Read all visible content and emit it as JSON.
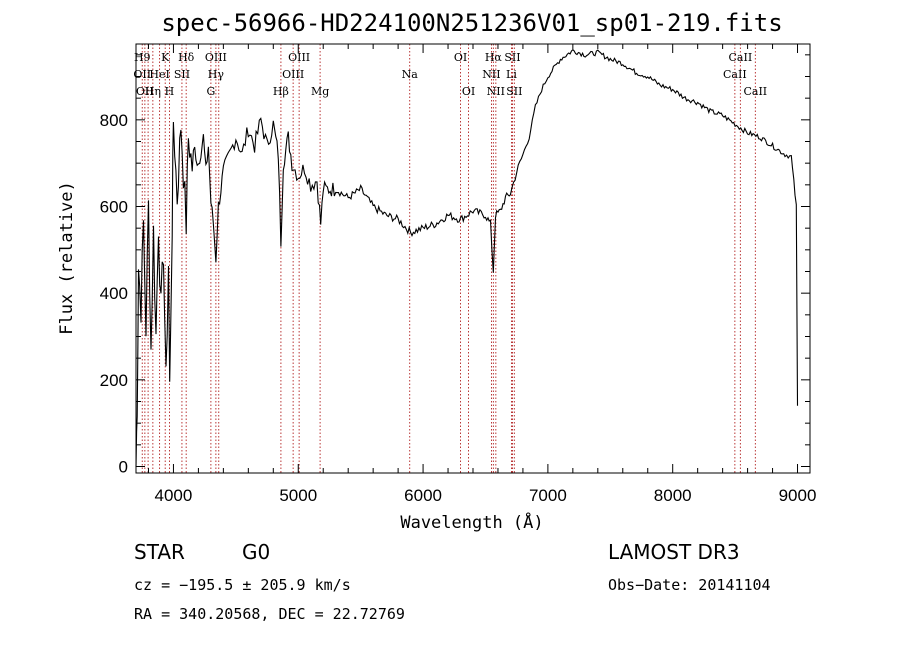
{
  "chart_data": {
    "type": "line",
    "title": "spec-56966-HD224100N251236V01_sp01-219.fits",
    "xlabel": "Wavelength (Å)",
    "ylabel": "Flux (relative)",
    "xlim": [
      3700,
      9100
    ],
    "ylim": [
      -15,
      975
    ],
    "xticks": [
      4000,
      5000,
      6000,
      7000,
      8000,
      9000
    ],
    "yticks": [
      0,
      200,
      400,
      600,
      800
    ],
    "grid": false,
    "series": [
      {
        "name": "spectrum",
        "points": [
          [
            3700,
            0
          ],
          [
            3710,
            150
          ],
          [
            3720,
            460
          ],
          [
            3740,
            370
          ],
          [
            3760,
            560
          ],
          [
            3780,
            320
          ],
          [
            3800,
            600
          ],
          [
            3820,
            270
          ],
          [
            3840,
            540
          ],
          [
            3860,
            300
          ],
          [
            3880,
            560
          ],
          [
            3900,
            360
          ],
          [
            3920,
            500
          ],
          [
            3940,
            190
          ],
          [
            3960,
            470
          ],
          [
            3970,
            180
          ],
          [
            3990,
            560
          ],
          [
            4000,
            800
          ],
          [
            4030,
            620
          ],
          [
            4060,
            790
          ],
          [
            4080,
            680
          ],
          [
            4102,
            560
          ],
          [
            4120,
            760
          ],
          [
            4150,
            690
          ],
          [
            4180,
            740
          ],
          [
            4200,
            700
          ],
          [
            4240,
            760
          ],
          [
            4260,
            680
          ],
          [
            4280,
            740
          ],
          [
            4300,
            610
          ],
          [
            4320,
            560
          ],
          [
            4340,
            480
          ],
          [
            4360,
            600
          ],
          [
            4400,
            680
          ],
          [
            4450,
            720
          ],
          [
            4500,
            760
          ],
          [
            4550,
            720
          ],
          [
            4600,
            780
          ],
          [
            4650,
            740
          ],
          [
            4700,
            800
          ],
          [
            4750,
            740
          ],
          [
            4800,
            790
          ],
          [
            4840,
            720
          ],
          [
            4861,
            520
          ],
          [
            4880,
            700
          ],
          [
            4920,
            760
          ],
          [
            4950,
            700
          ],
          [
            5000,
            670
          ],
          [
            5050,
            690
          ],
          [
            5100,
            650
          ],
          [
            5150,
            660
          ],
          [
            5180,
            560
          ],
          [
            5200,
            640
          ],
          [
            5300,
            640
          ],
          [
            5400,
            620
          ],
          [
            5500,
            640
          ],
          [
            5600,
            600
          ],
          [
            5700,
            580
          ],
          [
            5800,
            570
          ],
          [
            5900,
            540
          ],
          [
            6000,
            550
          ],
          [
            6100,
            560
          ],
          [
            6200,
            580
          ],
          [
            6300,
            570
          ],
          [
            6400,
            590
          ],
          [
            6500,
            580
          ],
          [
            6540,
            560
          ],
          [
            6563,
            450
          ],
          [
            6580,
            580
          ],
          [
            6620,
            590
          ],
          [
            6660,
            620
          ],
          [
            6700,
            630
          ],
          [
            6750,
            680
          ],
          [
            6800,
            720
          ],
          [
            6850,
            760
          ],
          [
            6900,
            830
          ],
          [
            6950,
            870
          ],
          [
            7000,
            900
          ],
          [
            7100,
            940
          ],
          [
            7200,
            960
          ],
          [
            7300,
            950
          ],
          [
            7400,
            955
          ],
          [
            7500,
            940
          ],
          [
            7600,
            930
          ],
          [
            7700,
            910
          ],
          [
            7800,
            900
          ],
          [
            7900,
            880
          ],
          [
            8000,
            870
          ],
          [
            8100,
            850
          ],
          [
            8200,
            840
          ],
          [
            8300,
            820
          ],
          [
            8400,
            810
          ],
          [
            8500,
            790
          ],
          [
            8600,
            770
          ],
          [
            8700,
            760
          ],
          [
            8800,
            740
          ],
          [
            8900,
            720
          ],
          [
            8950,
            715
          ],
          [
            8990,
            600
          ],
          [
            9000,
            140
          ]
        ]
      }
    ],
    "line_markers": [
      {
        "wavelength": 3750,
        "top_label": "H9",
        "mid_label": "OII",
        "low_label": ""
      },
      {
        "wavelength": 3771,
        "top_label": "",
        "mid_label": "",
        "low_label": "OII"
      },
      {
        "wavelength": 3797,
        "top_label": "",
        "mid_label": "",
        "low_label": ""
      },
      {
        "wavelength": 3835,
        "top_label": "",
        "mid_label": "",
        "low_label": "Hη"
      },
      {
        "wavelength": 3889,
        "top_label": "",
        "mid_label": "HeI",
        "low_label": ""
      },
      {
        "wavelength": 3934,
        "top_label": "K",
        "mid_label": "",
        "low_label": ""
      },
      {
        "wavelength": 3968,
        "top_label": "",
        "mid_label": "",
        "low_label": "H"
      },
      {
        "wavelength": 4068,
        "top_label": "",
        "mid_label": "SII",
        "low_label": ""
      },
      {
        "wavelength": 4102,
        "top_label": "Hδ",
        "mid_label": "",
        "low_label": ""
      },
      {
        "wavelength": 4300,
        "top_label": "",
        "mid_label": "",
        "low_label": "G"
      },
      {
        "wavelength": 4340,
        "top_label": "OIII",
        "mid_label": "Hγ",
        "low_label": ""
      },
      {
        "wavelength": 4363,
        "top_label": "",
        "mid_label": "",
        "low_label": ""
      },
      {
        "wavelength": 4861,
        "top_label": "",
        "mid_label": "",
        "low_label": "Hβ"
      },
      {
        "wavelength": 4959,
        "top_label": "",
        "mid_label": "OIII",
        "low_label": ""
      },
      {
        "wavelength": 5007,
        "top_label": "OIII",
        "mid_label": "",
        "low_label": ""
      },
      {
        "wavelength": 5175,
        "top_label": "",
        "mid_label": "",
        "low_label": "Mg"
      },
      {
        "wavelength": 5893,
        "top_label": "",
        "mid_label": "Na",
        "low_label": ""
      },
      {
        "wavelength": 6300,
        "top_label": "OI",
        "mid_label": "",
        "low_label": ""
      },
      {
        "wavelength": 6364,
        "top_label": "",
        "mid_label": "",
        "low_label": "OI"
      },
      {
        "wavelength": 6548,
        "top_label": "",
        "mid_label": "NII",
        "low_label": ""
      },
      {
        "wavelength": 6563,
        "top_label": "Hα",
        "mid_label": "",
        "low_label": ""
      },
      {
        "wavelength": 6583,
        "top_label": "",
        "mid_label": "",
        "low_label": "NII"
      },
      {
        "wavelength": 6708,
        "top_label": "",
        "mid_label": "Li",
        "low_label": ""
      },
      {
        "wavelength": 6716,
        "top_label": "SII",
        "mid_label": "",
        "low_label": ""
      },
      {
        "wavelength": 6731,
        "top_label": "",
        "mid_label": "",
        "low_label": "SII"
      },
      {
        "wavelength": 8498,
        "top_label": "",
        "mid_label": "CaII",
        "low_label": ""
      },
      {
        "wavelength": 8542,
        "top_label": "CaII",
        "mid_label": "",
        "low_label": ""
      },
      {
        "wavelength": 8662,
        "top_label": "",
        "mid_label": "",
        "low_label": "CaII"
      }
    ]
  },
  "info": {
    "class_label": "STAR",
    "subclass_label": "G0",
    "survey": "LAMOST DR3",
    "redshift": "cz = −195.5 ± 205.9 km/s",
    "obs_date": "Obs−Date: 20141104",
    "coords": "RA = 340.20568, DEC =  22.72769"
  },
  "colors": {
    "line_marker": "#b22222",
    "spectrum": "#000000",
    "axes": "#000000"
  }
}
